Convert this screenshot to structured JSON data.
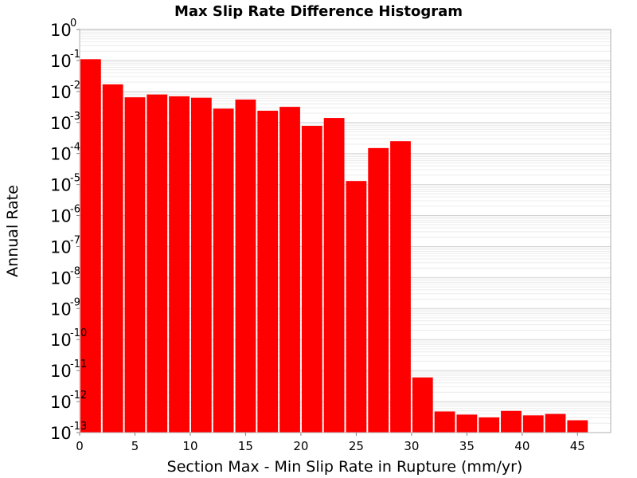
{
  "chart_data": {
    "type": "bar",
    "title": "Max Slip Rate Difference Histogram",
    "xlabel": "Section Max - Min Slip Rate in Rupture (mm/yr)",
    "ylabel": "Annual Rate",
    "y_scale": "log",
    "grid": true,
    "bar_color": "#ff0000",
    "bar_width": 2,
    "xlim": [
      0,
      48
    ],
    "ylim": [
      1e-13,
      1
    ],
    "x_ticks": [
      0,
      5,
      10,
      15,
      20,
      25,
      30,
      35,
      40,
      45
    ],
    "y_ticks": [
      {
        "base": "10",
        "exp": "0",
        "value": 1
      },
      {
        "base": "10",
        "exp": "-1",
        "value": 0.1
      },
      {
        "base": "10",
        "exp": "-2",
        "value": 0.01
      },
      {
        "base": "10",
        "exp": "-3",
        "value": 0.001
      },
      {
        "base": "10",
        "exp": "-4",
        "value": 0.0001
      },
      {
        "base": "10",
        "exp": "-5",
        "value": 1e-05
      },
      {
        "base": "10",
        "exp": "-6",
        "value": 1e-06
      },
      {
        "base": "10",
        "exp": "-7",
        "value": 1e-07
      },
      {
        "base": "10",
        "exp": "-8",
        "value": 1e-08
      },
      {
        "base": "10",
        "exp": "-9",
        "value": 1e-09
      },
      {
        "base": "10",
        "exp": "-10",
        "value": 1e-10
      },
      {
        "base": "10",
        "exp": "-11",
        "value": 1e-11
      },
      {
        "base": "10",
        "exp": "-12",
        "value": 1e-12
      },
      {
        "base": "10",
        "exp": "-13",
        "value": 1e-13
      }
    ],
    "bars": [
      {
        "x": 1,
        "y": 0.11
      },
      {
        "x": 3,
        "y": 0.017
      },
      {
        "x": 5,
        "y": 0.0065
      },
      {
        "x": 7,
        "y": 0.008
      },
      {
        "x": 9,
        "y": 0.007
      },
      {
        "x": 11,
        "y": 0.0063
      },
      {
        "x": 13,
        "y": 0.0028
      },
      {
        "x": 15,
        "y": 0.0055
      },
      {
        "x": 17,
        "y": 0.0024
      },
      {
        "x": 19,
        "y": 0.0032
      },
      {
        "x": 21,
        "y": 0.00078
      },
      {
        "x": 23,
        "y": 0.0014
      },
      {
        "x": 25,
        "y": 1.3e-05
      },
      {
        "x": 27,
        "y": 0.00015
      },
      {
        "x": 29,
        "y": 0.00025
      },
      {
        "x": 31,
        "y": 6e-12
      },
      {
        "x": 33,
        "y": 4.8e-13
      },
      {
        "x": 35,
        "y": 3.8e-13
      },
      {
        "x": 37,
        "y": 3.1e-13
      },
      {
        "x": 39,
        "y": 5e-13
      },
      {
        "x": 41,
        "y": 3.6e-13
      },
      {
        "x": 43,
        "y": 4e-13
      },
      {
        "x": 45,
        "y": 2.5e-13
      }
    ]
  }
}
